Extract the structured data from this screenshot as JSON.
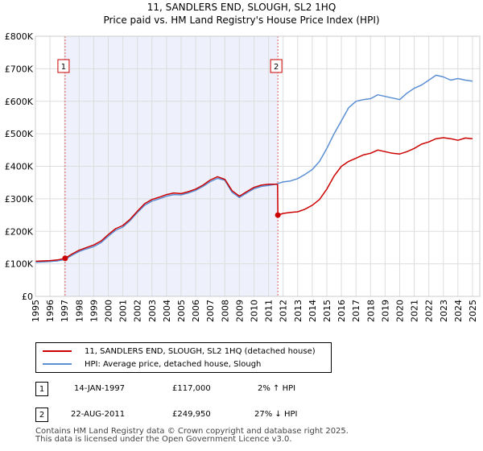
{
  "title_line1": "11, SANDLERS END, SLOUGH, SL2 1HQ",
  "title_line2": "Price paid vs. HM Land Registry's House Price Index (HPI)",
  "chart_data": {
    "type": "line",
    "title": "11, SANDLERS END, SLOUGH, SL2 1HQ — Price paid vs. HM Land Registry's House Price Index (HPI)",
    "xlabel": "",
    "ylabel": "",
    "xlim": [
      1995,
      2025.5
    ],
    "ylim": [
      0,
      800000
    ],
    "x_ticks": [
      1995,
      1996,
      1997,
      1998,
      1999,
      2000,
      2001,
      2002,
      2003,
      2004,
      2005,
      2006,
      2007,
      2008,
      2009,
      2010,
      2011,
      2012,
      2013,
      2014,
      2015,
      2016,
      2017,
      2018,
      2019,
      2020,
      2021,
      2022,
      2023,
      2024,
      2025
    ],
    "y_ticks": [
      0,
      100000,
      200000,
      300000,
      400000,
      500000,
      600000,
      700000,
      800000
    ],
    "y_tick_labels": [
      "£0",
      "£100K",
      "£200K",
      "£300K",
      "£400K",
      "£500K",
      "£600K",
      "£700K",
      "£800K"
    ],
    "grid": true,
    "shaded_region": {
      "from": 1997.04,
      "to": 2011.64,
      "color": "#eef0fb"
    },
    "series": [
      {
        "name": "11, SANDLERS END, SLOUGH, SL2 1HQ (detached house)",
        "color": "#cc0000",
        "x": [
          1995.0,
          1995.5,
          1996.0,
          1996.5,
          1997.04,
          1997.5,
          1998.0,
          1998.5,
          1999.0,
          1999.5,
          2000.0,
          2000.5,
          2001.0,
          2001.5,
          2002.0,
          2002.5,
          2003.0,
          2003.5,
          2004.0,
          2004.5,
          2005.0,
          2005.5,
          2006.0,
          2006.5,
          2007.0,
          2007.5,
          2008.0,
          2008.5,
          2009.0,
          2009.5,
          2010.0,
          2010.5,
          2011.0,
          2011.5,
          2011.62,
          2011.64,
          2012.0,
          2012.5,
          2013.0,
          2013.5,
          2014.0,
          2014.5,
          2015.0,
          2015.5,
          2016.0,
          2016.5,
          2017.0,
          2017.5,
          2018.0,
          2018.5,
          2019.0,
          2019.5,
          2020.0,
          2020.5,
          2021.0,
          2021.5,
          2022.0,
          2022.5,
          2023.0,
          2023.5,
          2024.0,
          2024.5,
          2025.0
        ],
        "values": [
          108000,
          109000,
          110000,
          112000,
          117000,
          130000,
          142000,
          150000,
          158000,
          170000,
          190000,
          208000,
          218000,
          237000,
          262000,
          285000,
          298000,
          305000,
          313000,
          318000,
          316000,
          322000,
          330000,
          342000,
          358000,
          368000,
          360000,
          325000,
          308000,
          322000,
          335000,
          342000,
          345000,
          345000,
          344000,
          249950,
          255000,
          258000,
          260000,
          268000,
          280000,
          298000,
          330000,
          370000,
          400000,
          415000,
          425000,
          435000,
          440000,
          450000,
          445000,
          440000,
          438000,
          445000,
          455000,
          468000,
          475000,
          485000,
          488000,
          485000,
          480000,
          487000,
          485000
        ]
      },
      {
        "name": "HPI: Average price, detached house, Slough",
        "color": "#5b8fd4",
        "x": [
          1995.0,
          1995.5,
          1996.0,
          1996.5,
          1997.0,
          1997.5,
          1998.0,
          1998.5,
          1999.0,
          1999.5,
          2000.0,
          2000.5,
          2001.0,
          2001.5,
          2002.0,
          2002.5,
          2003.0,
          2003.5,
          2004.0,
          2004.5,
          2005.0,
          2005.5,
          2006.0,
          2006.5,
          2007.0,
          2007.5,
          2008.0,
          2008.5,
          2009.0,
          2009.5,
          2010.0,
          2010.5,
          2011.0,
          2011.5,
          2012.0,
          2012.5,
          2013.0,
          2013.5,
          2014.0,
          2014.5,
          2015.0,
          2015.5,
          2016.0,
          2016.5,
          2017.0,
          2017.5,
          2018.0,
          2018.5,
          2019.0,
          2019.5,
          2020.0,
          2020.5,
          2021.0,
          2021.5,
          2022.0,
          2022.5,
          2023.0,
          2023.5,
          2024.0,
          2024.5,
          2025.0
        ],
        "values": [
          105000,
          106000,
          107000,
          109000,
          113000,
          126000,
          138000,
          146000,
          153000,
          165000,
          185000,
          203000,
          213000,
          233000,
          258000,
          280000,
          293000,
          300000,
          308000,
          313000,
          312000,
          318000,
          326000,
          338000,
          353000,
          363000,
          357000,
          320000,
          304000,
          318000,
          331000,
          338000,
          341000,
          345000,
          352000,
          355000,
          362000,
          375000,
          390000,
          415000,
          455000,
          500000,
          540000,
          580000,
          600000,
          605000,
          608000,
          620000,
          615000,
          610000,
          605000,
          625000,
          640000,
          650000,
          665000,
          680000,
          675000,
          665000,
          670000,
          665000,
          662000
        ]
      }
    ],
    "annotations": [
      {
        "label": "1",
        "x": 1997.04,
        "value": 117000
      },
      {
        "label": "2",
        "x": 2011.64,
        "value": 249950
      }
    ]
  },
  "legend": {
    "property_label": "11, SANDLERS END, SLOUGH, SL2 1HQ (detached house)",
    "hpi_label": "HPI: Average price, detached house, Slough"
  },
  "sales": [
    {
      "marker": "1",
      "date": "14-JAN-1997",
      "price": "£117,000",
      "hpi": "2% ↑ HPI"
    },
    {
      "marker": "2",
      "date": "22-AUG-2011",
      "price": "£249,950",
      "hpi": "27% ↓ HPI"
    }
  ],
  "footer": {
    "line1": "Contains HM Land Registry data © Crown copyright and database right 2025.",
    "line2": "This data is licensed under the Open Government Licence v3.0."
  }
}
